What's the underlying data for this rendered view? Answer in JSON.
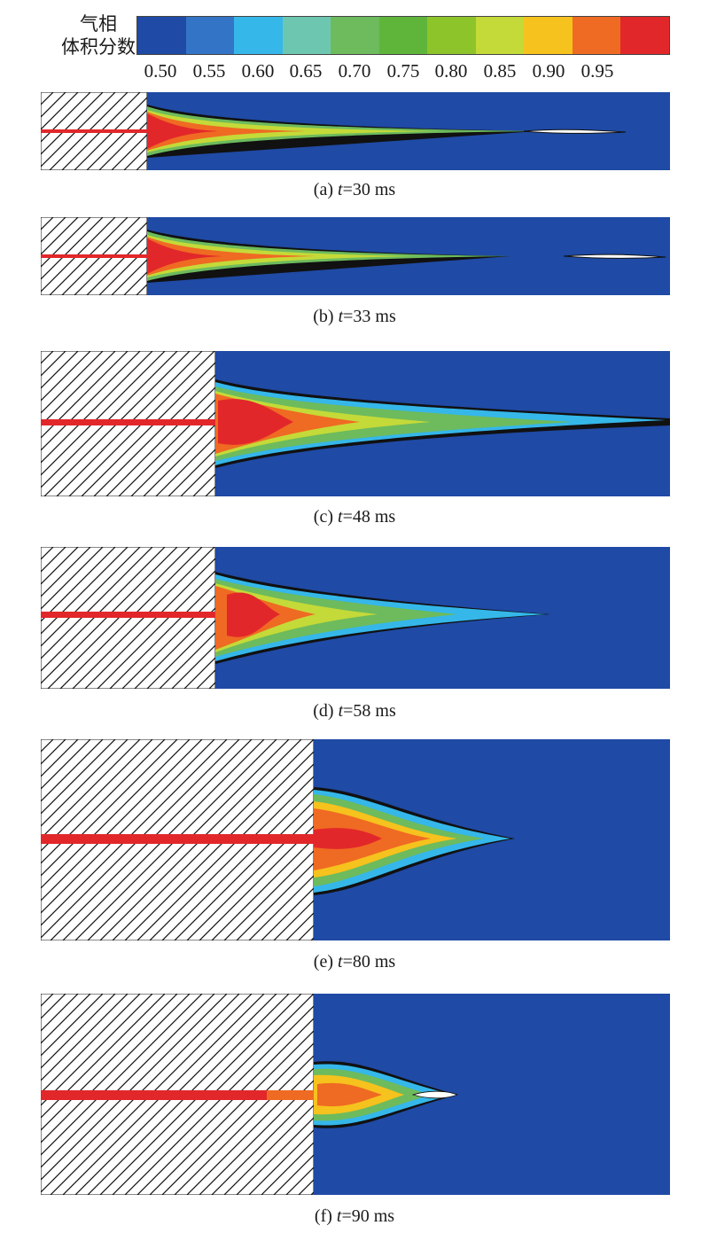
{
  "legend": {
    "title_line1": "气相",
    "title_line2": "体积分数",
    "ticks": [
      "0.50",
      "0.55",
      "0.60",
      "0.65",
      "0.70",
      "0.75",
      "0.80",
      "0.85",
      "0.90",
      "0.95"
    ],
    "colors": [
      "#1f4aa5",
      "#3374c6",
      "#35b7e9",
      "#6dc7b0",
      "#6dbb5d",
      "#5fb53a",
      "#8dc42a",
      "#c4da38",
      "#f6c21d",
      "#ef6a22",
      "#e2272a"
    ]
  },
  "panels": [
    {
      "label": "(a)",
      "var": "t",
      "value": "=30 ms"
    },
    {
      "label": "(b)",
      "var": "t",
      "value": "=33 ms"
    },
    {
      "label": "(c)",
      "var": "t",
      "value": "=48 ms"
    },
    {
      "label": "(d)",
      "var": "t",
      "value": "=58 ms"
    },
    {
      "label": "(e)",
      "var": "t",
      "value": "=80 ms"
    },
    {
      "label": "(f)",
      "var": "t",
      "value": "=90 ms"
    }
  ]
}
